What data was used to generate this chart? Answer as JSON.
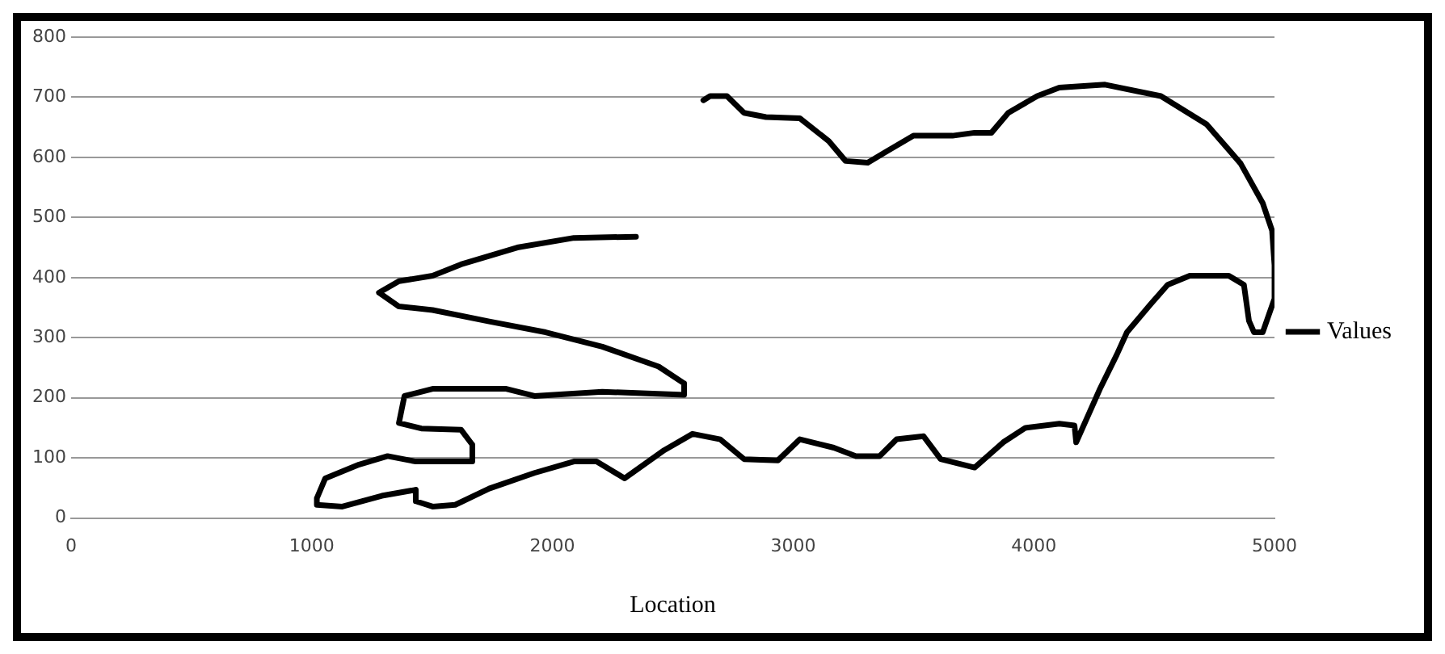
{
  "chart_data": {
    "type": "line",
    "xlabel": "Location",
    "xlim": [
      0,
      5000
    ],
    "xticks": [
      0,
      1000,
      2000,
      3000,
      4000,
      5000
    ],
    "ylim": [
      0,
      800
    ],
    "yticks": [
      0,
      100,
      200,
      300,
      400,
      500,
      600,
      700,
      800
    ],
    "grid": "y",
    "legend": "right",
    "marker": "none",
    "line_style": "solid",
    "series": [
      {
        "name": "Values",
        "color": "#000000",
        "x": [
          2347,
          2089,
          1854,
          1620,
          1502,
          1362,
          1279,
          1362,
          1502,
          1737,
          1972,
          2207,
          2441,
          2547,
          2547,
          2207,
          1925,
          1808,
          1502,
          1385,
          1362,
          1455,
          1620,
          1667,
          1667,
          1432,
          1315,
          1197,
          1056,
          1021,
          1021,
          1127,
          1291,
          1432,
          1432,
          1502,
          1596,
          1737,
          1925,
          2089,
          2183,
          2300,
          2465,
          2582,
          2697,
          2796,
          2937,
          3028,
          3169,
          3261,
          3359,
          3430,
          3542,
          3613,
          3754,
          3873,
          3965,
          4106,
          4169,
          4176,
          4275,
          4345,
          4387,
          4486,
          4556,
          4648,
          4810,
          4873,
          4894,
          4915,
          4951,
          5000,
          5000,
          4990,
          4951,
          4859,
          4718,
          4528,
          4296,
          4106,
          4014,
          3894,
          3824,
          3754,
          3662,
          3500,
          3380,
          3310,
          3218,
          3148,
          3028,
          2887,
          2796,
          2725,
          2655,
          2627
        ],
        "values": [
          468,
          466,
          450,
          422,
          403,
          394,
          375,
          352,
          346,
          327,
          309,
          285,
          252,
          224,
          205,
          210,
          203,
          215,
          215,
          203,
          158,
          149,
          147,
          122,
          94,
          94,
          103,
          89,
          66,
          33,
          22,
          19,
          37,
          47,
          28,
          19,
          22,
          49,
          75,
          94,
          94,
          66,
          113,
          140,
          131,
          98,
          96,
          131,
          117,
          103,
          103,
          131,
          136,
          98,
          84,
          126,
          150,
          157,
          154,
          126,
          215,
          272,
          309,
          356,
          388,
          403,
          403,
          388,
          328,
          309,
          309,
          365,
          421,
          478,
          524,
          590,
          655,
          702,
          721,
          716,
          702,
          674,
          641,
          641,
          636,
          636,
          608,
          591,
          594,
          627,
          665,
          667,
          674,
          702,
          702,
          695
        ]
      }
    ]
  }
}
